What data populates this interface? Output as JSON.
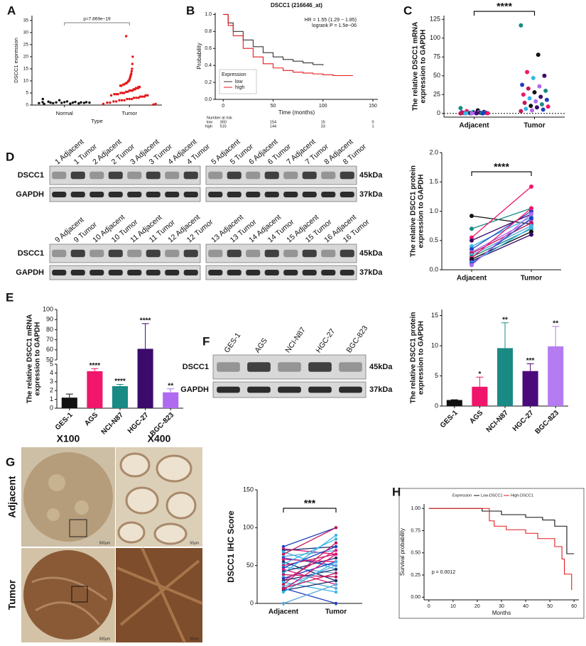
{
  "panel_labels": [
    "A",
    "B",
    "C",
    "D",
    "E",
    "F",
    "G",
    "H"
  ],
  "chart_data": [
    {
      "type": "swarm",
      "title": "p=7.869e−19",
      "x_label": "Type",
      "y_label": "DSCC1 expression",
      "categories": [
        "Normal",
        "Tumor"
      ],
      "ylim": [
        0,
        37
      ],
      "yticks": [
        0,
        5,
        10,
        15,
        20,
        25,
        30,
        35
      ],
      "groups": [
        {
          "color": "#111111",
          "values": [
            0.8,
            1.0,
            1.2,
            0.9,
            1.1,
            0.7,
            1.3,
            1.0,
            0.6,
            1.5,
            1.2,
            0.9,
            2.0,
            1.1,
            0.8,
            1.0,
            1.4,
            0.5,
            1.2,
            2.5
          ]
        },
        {
          "color": "#e41a1c",
          "values": [
            28.5,
            20,
            17,
            15,
            14,
            13,
            12.5,
            12,
            11.5,
            11,
            10.5,
            10,
            10,
            9.5,
            9,
            9,
            8.5,
            8.5,
            8,
            8,
            7.5,
            7.5,
            7,
            7,
            7,
            6.5,
            6.5,
            6,
            6,
            6,
            5.5,
            5.5,
            5,
            5,
            5,
            4.5,
            4.5,
            4.5,
            4,
            4,
            4,
            3.5,
            3.5,
            3.5,
            3,
            3,
            3,
            2.5,
            2.5,
            2.5,
            2,
            2,
            2,
            1.5,
            1.5,
            1,
            1,
            0.5,
            0.5,
            0.2
          ]
        }
      ]
    },
    {
      "type": "km",
      "title": "DSCC1 (216646_at)",
      "x_label": "Time (months)",
      "y_label": "Probability",
      "xlim": [
        -8,
        155
      ],
      "xticks": [
        0,
        50,
        100,
        150
      ],
      "ylim": [
        0,
        1.02
      ],
      "yticks": [
        {
          "value": 0,
          "label": "0.0"
        },
        0.2,
        0.4,
        0.6,
        0.8,
        {
          "value": 1,
          "label": "1.0"
        }
      ],
      "annotations": [
        "HR = 1.55 (1.29 − 1.85)",
        "logrank P = 1.5e−06"
      ],
      "legend_title": "Expression",
      "legend": "lower-left",
      "series": [
        {
          "name": "low",
          "color": "#333333",
          "x": [
            0,
            5,
            10,
            20,
            30,
            40,
            50,
            60,
            70,
            80,
            90,
            100
          ],
          "values": [
            1,
            0.9,
            0.8,
            0.7,
            0.62,
            0.55,
            0.5,
            0.47,
            0.45,
            0.43,
            0.41,
            0.4
          ]
        },
        {
          "name": "high",
          "color": "#e41a1c",
          "x": [
            0,
            5,
            10,
            20,
            30,
            40,
            50,
            60,
            70,
            80,
            90,
            100,
            110,
            120,
            130
          ],
          "values": [
            1,
            0.87,
            0.75,
            0.6,
            0.5,
            0.42,
            0.37,
            0.34,
            0.32,
            0.31,
            0.3,
            0.29,
            0.28,
            0.28,
            0.28
          ]
        }
      ],
      "risk_table": {
        "title": "Number at risk",
        "rows": [
          {
            "name": "low",
            "values": [
              360,
              154,
              15,
              0
            ]
          },
          {
            "name": "high",
            "values": [
              515,
              144,
              33,
              1
            ]
          }
        ]
      }
    },
    {
      "type": "dot",
      "y_label": [
        "The relative DSCC1 mRNA",
        "expression to GAPDH"
      ],
      "categories": [
        "Adjacent",
        "Tumor"
      ],
      "ylim": [
        -5,
        130
      ],
      "yticks": [
        0,
        25,
        50,
        75,
        100,
        125
      ],
      "annotation": "****",
      "hline": 0,
      "adjacent": [
        7,
        4,
        3,
        2,
        2,
        1.5,
        1.5,
        1,
        1,
        1,
        0.8,
        0.8,
        0.6,
        0.5,
        0.5,
        0.4,
        0.3,
        0.3,
        0.2,
        0.2,
        0.1,
        0.1,
        0.1,
        0
      ],
      "tumor": [
        117,
        78,
        55,
        50,
        47,
        38,
        36,
        33,
        30,
        28,
        25,
        22,
        20,
        18,
        16,
        14,
        12,
        10,
        9,
        8,
        6,
        5,
        4,
        3
      ],
      "colors": [
        "#1a8a84",
        "#111111",
        "#f0166c",
        "#3c0a6b",
        "#38b6e8",
        "#1f3fbf",
        "#b06af0",
        "#c2185b",
        "#1a8a84",
        "#111111",
        "#f0166c",
        "#3c0a6b",
        "#38b6e8",
        "#1f3fbf",
        "#b06af0",
        "#c2185b",
        "#1a8a84",
        "#111111",
        "#f0166c",
        "#3c0a6b",
        "#38b6e8",
        "#1f3fbf",
        "#b06af0",
        "#c2185b"
      ]
    },
    {
      "type": "paired",
      "y_label": [
        "The relative DSCC1 protein",
        "expression to GAPDH"
      ],
      "categories": [
        "Adjacent",
        "Tumor"
      ],
      "ylim": [
        0,
        2
      ],
      "yticks": [
        {
          "value": 0,
          "label": "0.0"
        },
        0.5,
        {
          "value": 1,
          "label": "1.0"
        },
        1.5,
        {
          "value": 2,
          "label": "2.0"
        }
      ],
      "annotation": "****",
      "adjacent": [
        0.92,
        0.7,
        0.55,
        0.5,
        0.4,
        0.35,
        0.3,
        0.28,
        0.25,
        0.22,
        0.2,
        0.18,
        0.15,
        0.12,
        0.1,
        0.08
      ],
      "tumor": [
        0.78,
        1.05,
        1.42,
        0.95,
        0.9,
        1.0,
        0.85,
        0.8,
        0.75,
        0.7,
        1.05,
        0.65,
        0.6,
        0.72,
        0.88,
        0.95
      ],
      "colors": [
        "#111111",
        "#1a8a84",
        "#f0166c",
        "#3c0a6b",
        "#38b6e8",
        "#1f3fbf",
        "#b06af0",
        "#c2185b",
        "#5aa8d8",
        "#1a8a84",
        "#f0166c",
        "#111111",
        "#3c0a6b",
        "#38b6e8",
        "#1f3fbf",
        "#b06af0"
      ]
    },
    {
      "type": "bar",
      "y_label": [
        "The relative DSCC1 mRNA",
        "expression to GAPDH"
      ],
      "categories": [
        "GES-1",
        "AGS",
        "NCI-N87",
        "HGC-27",
        "BGC-823"
      ],
      "values": [
        1.2,
        4.2,
        2.5,
        61,
        1.8
      ],
      "errors": [
        0.4,
        0.3,
        0.2,
        25,
        0.4
      ],
      "significance": [
        null,
        "****",
        "****",
        "****",
        "**"
      ],
      "colors": [
        "#111111",
        "#f0166c",
        "#1a8a84",
        "#3c0a6b",
        "#b06af0"
      ],
      "ylim": [
        0,
        100
      ],
      "ybreak": [
        5,
        50
      ],
      "yticks": [
        0,
        1,
        2,
        3,
        4,
        5,
        50,
        60,
        70,
        80,
        90,
        100
      ]
    },
    {
      "type": "bar",
      "y_label": [
        "The relative DSCC1 protein",
        "expression to GAPDH"
      ],
      "categories": [
        "GES-1",
        "AGS",
        "NCI-N87",
        "HGC-27",
        "BGC-823"
      ],
      "values": [
        1,
        3.2,
        9.6,
        5.8,
        9.9
      ],
      "errors": [
        0.05,
        1.6,
        4.2,
        1.2,
        3.3
      ],
      "significance": [
        null,
        "*",
        "**",
        "***",
        "**"
      ],
      "colors": [
        "#111111",
        "#f0166c",
        "#1a8a84",
        "#4a0a7a",
        "#b57cf2"
      ],
      "ylim": [
        0,
        16
      ],
      "yticks": [
        0,
        5,
        10,
        15
      ]
    },
    {
      "type": "paired",
      "y_label": "DSCC1 IHC Score",
      "categories": [
        "Adjacent",
        "Tumor"
      ],
      "ylim": [
        0,
        150
      ],
      "yticks": [
        0,
        50,
        100,
        150
      ],
      "annotation": "***",
      "adjacent": [
        75,
        72,
        70,
        68,
        65,
        62,
        60,
        58,
        55,
        52,
        50,
        48,
        47,
        45,
        42,
        40,
        38,
        35,
        33,
        30,
        30,
        28,
        25,
        22,
        20,
        18,
        17,
        15,
        20,
        0
      ],
      "tumor": [
        100,
        65,
        75,
        45,
        100,
        70,
        50,
        55,
        30,
        85,
        65,
        40,
        75,
        25,
        60,
        90,
        35,
        20,
        55,
        70,
        45,
        15,
        80,
        50,
        0,
        65,
        30,
        55,
        40,
        25
      ],
      "colors": [
        "#1f3fbf",
        "#e0197a",
        "#1f2f6f",
        "#38b6e8",
        "#c2185b",
        "#5aa8d8",
        "#1f3fbf",
        "#e0197a",
        "#1f2f6f",
        "#38b6e8",
        "#c2185b",
        "#5aa8d8",
        "#1f3fbf",
        "#e0197a",
        "#1f2f6f",
        "#38b6e8",
        "#c2185b",
        "#5aa8d8",
        "#1f3fbf",
        "#e0197a",
        "#1f2f6f",
        "#38b6e8",
        "#c2185b",
        "#5aa8d8",
        "#1f3fbf",
        "#e0197a",
        "#1f2f6f",
        "#38b6e8",
        "#c2185b",
        "#5aa8d8"
      ]
    },
    {
      "type": "km",
      "x_label": "Months",
      "y_label": "Survival probability",
      "xlim": [
        -2,
        62
      ],
      "xticks": [
        0,
        10,
        20,
        30,
        40,
        50,
        60
      ],
      "ylim": [
        -0.03,
        1.05
      ],
      "yticks": [
        {
          "value": 0,
          "label": "0.00"
        },
        0.25,
        {
          "value": 0.5,
          "label": "0.50"
        },
        0.75,
        {
          "value": 1,
          "label": "1.00"
        }
      ],
      "annotations": [
        "p = 0.0012"
      ],
      "legend_title": "Expression",
      "legend": "top",
      "series": [
        {
          "name": "Low-DSCC1",
          "color": "#111111",
          "x": [
            0,
            22,
            30,
            40,
            47,
            52,
            57,
            60
          ],
          "values": [
            1,
            0.97,
            0.93,
            0.9,
            0.87,
            0.8,
            0.49,
            0.49
          ]
        },
        {
          "name": "High-DSCC1",
          "color": "#e41a1c",
          "x": [
            0,
            25,
            27,
            32,
            40,
            45,
            52,
            55,
            56,
            59
          ],
          "values": [
            1,
            0.86,
            0.8,
            0.76,
            0.72,
            0.66,
            0.57,
            0.43,
            0.26,
            0.08
          ]
        }
      ]
    }
  ],
  "blot_d": {
    "rows": [
      "DSCC1",
      "GAPDH"
    ],
    "sizes": [
      "45kDa",
      "37kDa"
    ],
    "lanes_top": [
      "1 Adjacent",
      "1 Tumor",
      "2 Adjacent",
      "2 Tumor",
      "3 Adjacent",
      "3 Tumor",
      "4 Adjacent",
      "4 Tumor",
      "5 Adjacent",
      "5 Tumor",
      "6 Adjacent",
      "6 Tumor",
      "7 Adjacent",
      "7 Tumor",
      "8 Adjacent",
      "8 Tumor"
    ],
    "lanes_bottom": [
      "9 Adjacent",
      "9 Tumor",
      "10 Adjacent",
      "10 Tumor",
      "11 Adjacent",
      "11 Tumor",
      "12 Adjacent",
      "12 Tumor",
      "13 Adjacent",
      "13 Tumor",
      "14 Adjacent",
      "14 Tumor",
      "15 Adjacent",
      "15 Tumor",
      "16 Adjacent",
      "16 Tumor"
    ]
  },
  "blot_f": {
    "rows": [
      "DSCC1",
      "GAPDH"
    ],
    "sizes": [
      "45kDa",
      "37kDa"
    ],
    "lanes": [
      "GES-1",
      "AGS",
      "NCI-N87",
      "HGC-27",
      "BGC-823"
    ]
  },
  "ihc": {
    "columns": [
      "X100",
      "X400"
    ],
    "rows": [
      "Adjacent",
      "Tumor"
    ],
    "scale_bars": [
      "500μm",
      "50μm"
    ]
  }
}
